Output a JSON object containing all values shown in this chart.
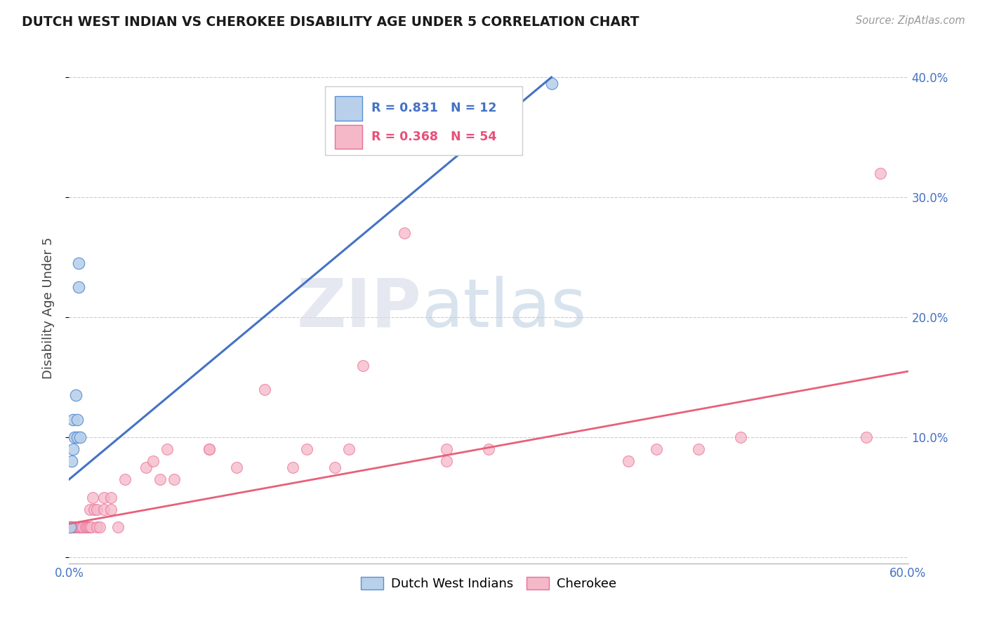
{
  "title": "DUTCH WEST INDIAN VS CHEROKEE DISABILITY AGE UNDER 5 CORRELATION CHART",
  "source": "Source: ZipAtlas.com",
  "ylabel": "Disability Age Under 5",
  "xlim": [
    0,
    0.6
  ],
  "ylim": [
    -0.005,
    0.42
  ],
  "watermark_zip": "ZIP",
  "watermark_atlas": "atlas",
  "legend_blue_r": "0.831",
  "legend_blue_n": "12",
  "legend_pink_r": "0.368",
  "legend_pink_n": "54",
  "legend_label_blue": "Dutch West Indians",
  "legend_label_pink": "Cherokee",
  "blue_fill": "#b8d0ea",
  "blue_edge": "#5b8fd4",
  "pink_fill": "#f5b8c8",
  "pink_edge": "#e8709a",
  "blue_line_color": "#4472c4",
  "pink_line_color": "#e8607a",
  "text_blue": "#4472c4",
  "text_pink": "#e8507a",
  "dutch_x": [
    0.001,
    0.002,
    0.003,
    0.003,
    0.004,
    0.005,
    0.006,
    0.006,
    0.007,
    0.007,
    0.008,
    0.345
  ],
  "dutch_y": [
    0.025,
    0.08,
    0.09,
    0.115,
    0.1,
    0.135,
    0.115,
    0.1,
    0.225,
    0.245,
    0.1,
    0.395
  ],
  "cherokee_x": [
    0.001,
    0.002,
    0.002,
    0.003,
    0.004,
    0.004,
    0.005,
    0.005,
    0.006,
    0.007,
    0.008,
    0.009,
    0.01,
    0.012,
    0.013,
    0.014,
    0.015,
    0.015,
    0.016,
    0.017,
    0.018,
    0.02,
    0.02,
    0.022,
    0.025,
    0.025,
    0.03,
    0.03,
    0.035,
    0.04,
    0.055,
    0.06,
    0.065,
    0.07,
    0.075,
    0.1,
    0.1,
    0.12,
    0.14,
    0.16,
    0.17,
    0.19,
    0.2,
    0.21,
    0.24,
    0.27,
    0.27,
    0.3,
    0.4,
    0.42,
    0.45,
    0.48,
    0.57,
    0.58
  ],
  "cherokee_y": [
    0.025,
    0.025,
    0.025,
    0.025,
    0.025,
    0.025,
    0.025,
    0.025,
    0.025,
    0.025,
    0.025,
    0.025,
    0.025,
    0.025,
    0.025,
    0.025,
    0.025,
    0.04,
    0.025,
    0.05,
    0.04,
    0.025,
    0.04,
    0.025,
    0.05,
    0.04,
    0.05,
    0.04,
    0.025,
    0.065,
    0.075,
    0.08,
    0.065,
    0.09,
    0.065,
    0.09,
    0.09,
    0.075,
    0.14,
    0.075,
    0.09,
    0.075,
    0.09,
    0.16,
    0.27,
    0.08,
    0.09,
    0.09,
    0.08,
    0.09,
    0.09,
    0.1,
    0.1,
    0.32
  ],
  "blue_line_x0": 0.0,
  "blue_line_y0": 0.065,
  "blue_line_x1": 0.345,
  "blue_line_y1": 0.4,
  "pink_line_x0": 0.0,
  "pink_line_y0": 0.028,
  "pink_line_x1": 0.6,
  "pink_line_y1": 0.155
}
